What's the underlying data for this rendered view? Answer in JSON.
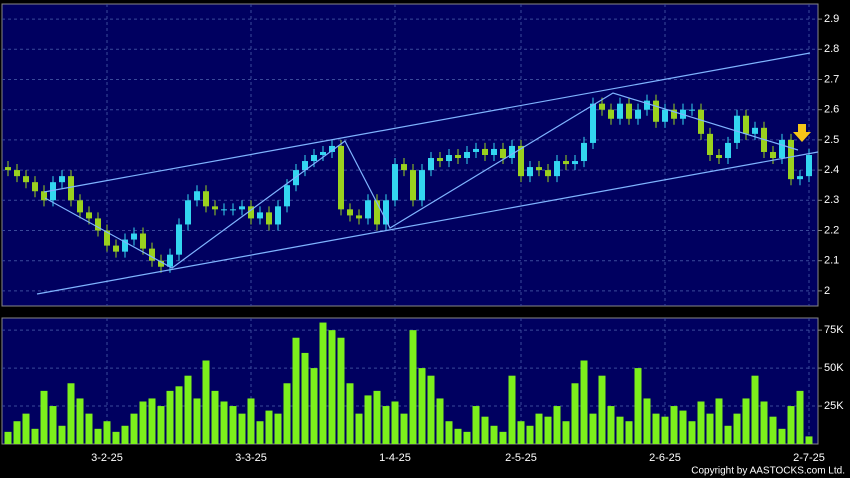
{
  "chart_data": [
    {
      "type": "candlestick",
      "categories": [
        null,
        null,
        null,
        null,
        null,
        null,
        null,
        null,
        null,
        null,
        null,
        "3-2-25",
        null,
        null,
        null,
        null,
        null,
        null,
        null,
        null,
        null,
        null,
        null,
        null,
        null,
        null,
        null,
        "3-3-25",
        null,
        null,
        null,
        null,
        null,
        null,
        null,
        null,
        null,
        null,
        null,
        null,
        null,
        null,
        null,
        "1-4-25",
        null,
        null,
        null,
        null,
        null,
        null,
        null,
        null,
        null,
        null,
        null,
        null,
        null,
        "2-5-25",
        null,
        null,
        null,
        null,
        null,
        null,
        null,
        null,
        null,
        null,
        null,
        null,
        null,
        null,
        null,
        "2-6-25",
        null,
        null,
        null,
        null,
        null,
        null,
        null,
        null,
        null,
        null,
        null,
        null,
        null,
        null,
        null,
        "2-7-25"
      ],
      "open": [
        2.41,
        2.4,
        2.38,
        2.36,
        2.33,
        2.3,
        2.36,
        2.38,
        2.3,
        2.26,
        2.24,
        2.2,
        2.15,
        2.13,
        2.17,
        2.19,
        2.14,
        2.1,
        2.08,
        2.12,
        2.22,
        2.3,
        2.33,
        2.28,
        2.27,
        2.27,
        2.27,
        2.28,
        2.24,
        2.26,
        2.22,
        2.28,
        2.35,
        2.4,
        2.43,
        2.45,
        2.46,
        2.48,
        2.27,
        2.25,
        2.24,
        2.3,
        2.22,
        2.3,
        2.42,
        2.4,
        2.3,
        2.4,
        2.44,
        2.43,
        2.45,
        2.44,
        2.46,
        2.47,
        2.45,
        2.47,
        2.44,
        2.48,
        2.38,
        2.41,
        2.4,
        2.38,
        2.43,
        2.42,
        2.43,
        2.49,
        2.62,
        2.6,
        2.57,
        2.62,
        2.57,
        2.6,
        2.63,
        2.56,
        2.6,
        2.57,
        2.6,
        2.6,
        2.52,
        2.45,
        2.44,
        2.49,
        2.58,
        2.52,
        2.54,
        2.46,
        2.44,
        2.5,
        2.37,
        2.38
      ],
      "high": [
        2.43,
        2.42,
        2.4,
        2.38,
        2.35,
        2.38,
        2.4,
        2.4,
        2.32,
        2.28,
        2.26,
        2.22,
        2.17,
        2.19,
        2.21,
        2.21,
        2.16,
        2.12,
        2.14,
        2.24,
        2.32,
        2.35,
        2.35,
        2.3,
        2.29,
        2.29,
        2.3,
        2.3,
        2.28,
        2.28,
        2.3,
        2.37,
        2.42,
        2.45,
        2.47,
        2.48,
        2.5,
        2.5,
        2.29,
        2.27,
        2.32,
        2.32,
        2.32,
        2.44,
        2.44,
        2.42,
        2.42,
        2.46,
        2.46,
        2.47,
        2.47,
        2.48,
        2.49,
        2.49,
        2.49,
        2.49,
        2.5,
        2.5,
        2.43,
        2.43,
        2.42,
        2.45,
        2.45,
        2.45,
        2.51,
        2.64,
        2.64,
        2.62,
        2.64,
        2.64,
        2.62,
        2.65,
        2.65,
        2.62,
        2.62,
        2.62,
        2.62,
        2.62,
        2.54,
        2.47,
        2.51,
        2.6,
        2.6,
        2.56,
        2.56,
        2.48,
        2.52,
        2.52,
        2.4,
        2.47
      ],
      "low": [
        2.38,
        2.36,
        2.34,
        2.31,
        2.28,
        2.28,
        2.34,
        2.28,
        2.24,
        2.22,
        2.18,
        2.13,
        2.11,
        2.11,
        2.15,
        2.12,
        2.08,
        2.06,
        2.06,
        2.1,
        2.2,
        2.28,
        2.26,
        2.25,
        2.25,
        2.25,
        2.25,
        2.22,
        2.22,
        2.2,
        2.2,
        2.26,
        2.33,
        2.38,
        2.41,
        2.43,
        2.44,
        2.25,
        2.23,
        2.22,
        2.22,
        2.2,
        2.2,
        2.28,
        2.38,
        2.28,
        2.28,
        2.38,
        2.41,
        2.41,
        2.42,
        2.42,
        2.44,
        2.43,
        2.43,
        2.42,
        2.42,
        2.36,
        2.36,
        2.38,
        2.36,
        2.36,
        2.4,
        2.4,
        2.41,
        2.47,
        2.58,
        2.55,
        2.55,
        2.55,
        2.55,
        2.58,
        2.54,
        2.54,
        2.55,
        2.55,
        2.58,
        2.5,
        2.43,
        2.42,
        2.42,
        2.47,
        2.5,
        2.5,
        2.44,
        2.42,
        2.42,
        2.35,
        2.35,
        2.36
      ],
      "close": [
        2.4,
        2.38,
        2.36,
        2.33,
        2.3,
        2.36,
        2.38,
        2.3,
        2.26,
        2.24,
        2.2,
        2.15,
        2.13,
        2.17,
        2.19,
        2.14,
        2.1,
        2.08,
        2.12,
        2.22,
        2.3,
        2.33,
        2.28,
        2.27,
        2.27,
        2.27,
        2.28,
        2.24,
        2.26,
        2.22,
        2.28,
        2.35,
        2.4,
        2.43,
        2.45,
        2.46,
        2.48,
        2.27,
        2.25,
        2.24,
        2.3,
        2.22,
        2.3,
        2.42,
        2.4,
        2.3,
        2.4,
        2.44,
        2.43,
        2.45,
        2.44,
        2.46,
        2.47,
        2.45,
        2.47,
        2.44,
        2.48,
        2.38,
        2.41,
        2.4,
        2.38,
        2.43,
        2.42,
        2.43,
        2.49,
        2.62,
        2.6,
        2.57,
        2.62,
        2.57,
        2.6,
        2.63,
        2.56,
        2.6,
        2.57,
        2.6,
        2.6,
        2.52,
        2.45,
        2.44,
        2.49,
        2.58,
        2.52,
        2.54,
        2.46,
        2.44,
        2.5,
        2.37,
        2.38,
        2.45
      ],
      "up_color": "#33d6f0",
      "down_color": "#9ad11e",
      "ylim": [
        1.95,
        2.95
      ],
      "yticks": [
        2,
        2.1,
        2.2,
        2.3,
        2.4,
        2.5,
        2.6,
        2.7,
        2.8,
        2.9
      ],
      "grid": true
    },
    {
      "type": "bar",
      "values": [
        8000,
        15000,
        20000,
        10000,
        35000,
        25000,
        12000,
        40000,
        30000,
        20000,
        10000,
        15000,
        8000,
        12000,
        20000,
        28000,
        30000,
        25000,
        35000,
        38000,
        45000,
        30000,
        55000,
        35000,
        28000,
        25000,
        20000,
        30000,
        15000,
        22000,
        20000,
        40000,
        70000,
        60000,
        50000,
        80000,
        75000,
        70000,
        40000,
        20000,
        32000,
        35000,
        25000,
        28000,
        20000,
        75000,
        50000,
        45000,
        30000,
        15000,
        10000,
        8000,
        25000,
        18000,
        12000,
        8000,
        45000,
        15000,
        12000,
        20000,
        18000,
        25000,
        15000,
        40000,
        55000,
        20000,
        45000,
        25000,
        18000,
        15000,
        50000,
        30000,
        20000,
        18000,
        25000,
        22000,
        15000,
        28000,
        20000,
        30000,
        12000,
        20000,
        30000,
        45000,
        28000,
        18000,
        10000,
        25000,
        35000,
        5000
      ],
      "color": "#7cf01c",
      "ylim": [
        0,
        83000
      ],
      "yticks": [
        {
          "value": 25000,
          "label": "25K"
        },
        {
          "value": 50000,
          "label": "50K"
        },
        {
          "value": 75000,
          "label": "75K"
        }
      ],
      "grid": true
    }
  ],
  "footer": "Copyright by AASTOCKS.com Ltd."
}
